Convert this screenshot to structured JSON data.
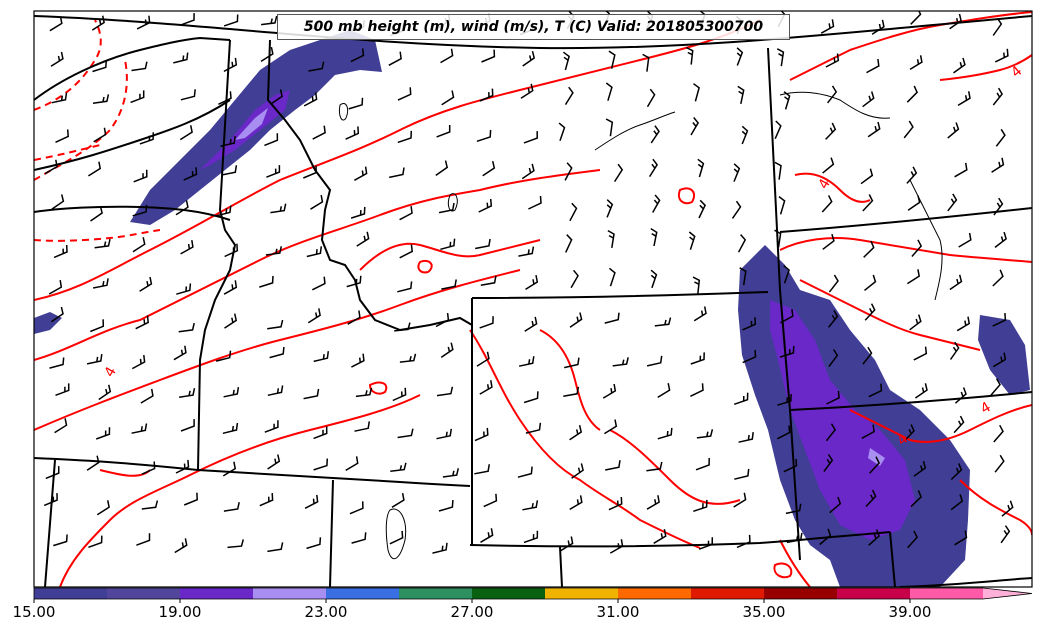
{
  "title": "500 mb height (m), wind (m/s), T (C) Valid: 201805300700",
  "contour_labels": [
    "4",
    "4",
    "4",
    "4",
    "4"
  ],
  "colorbar": {
    "tick_labels": [
      "15.00",
      "19.00",
      "23.00",
      "27.00",
      "31.00",
      "35.00",
      "39.00"
    ],
    "colors": [
      "#403e95",
      "#52469c",
      "#6a28c8",
      "#a98ef2",
      "#3a6fe4",
      "#2e8f60",
      "#0b6112",
      "#f0b400",
      "#ff6a00",
      "#e01a00",
      "#980000",
      "#c8004a",
      "#ff5aa8",
      "#ffb0d8"
    ]
  },
  "colors": {
    "temperature_contour": "#ff0000",
    "boundaries": "#000000",
    "shading_dark": "#403e95",
    "shading_mid": "#6a28c8",
    "shading_light": "#a98ef2"
  }
}
